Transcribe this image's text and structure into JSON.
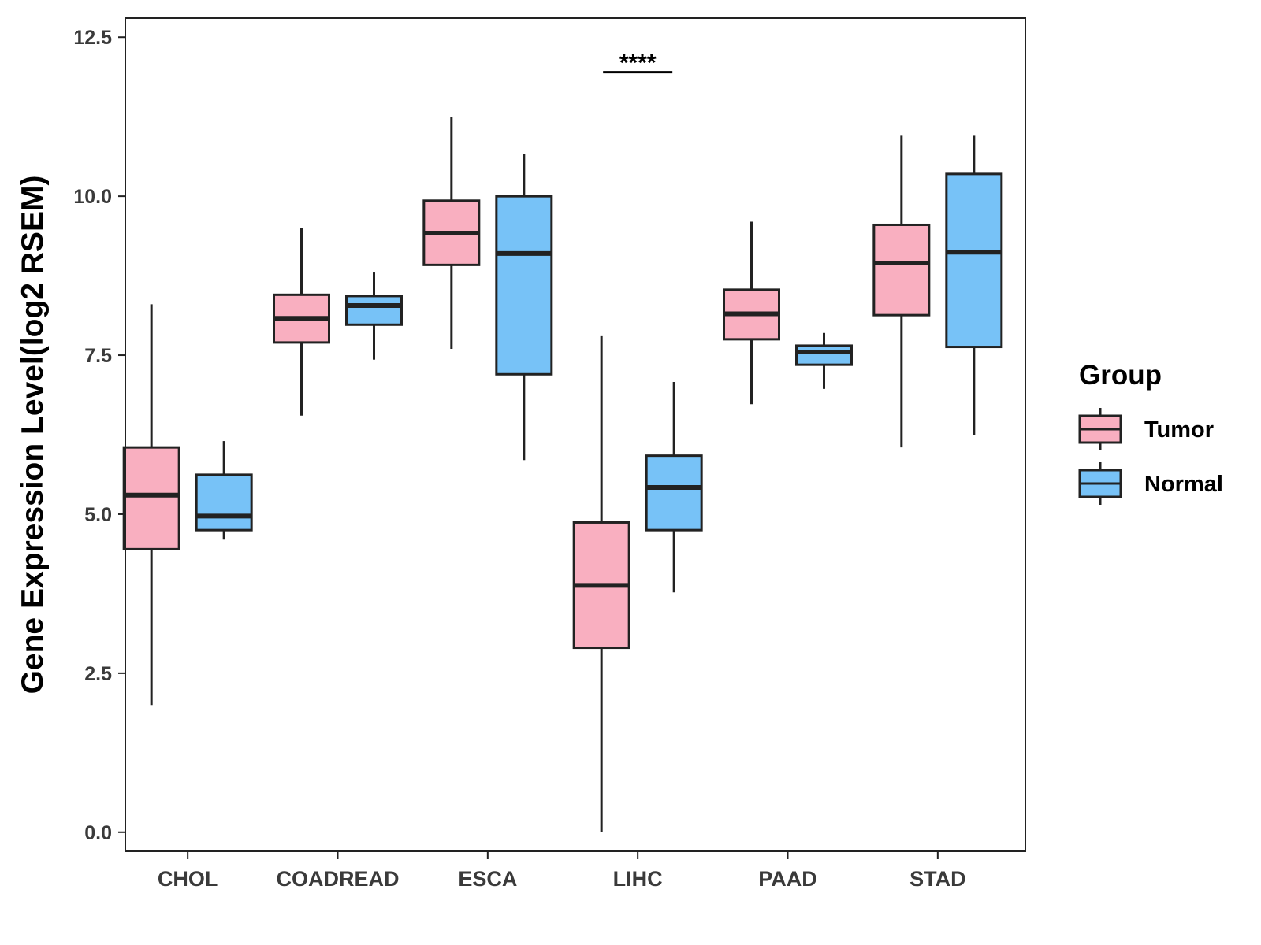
{
  "chart_data": {
    "type": "boxplot",
    "title": "",
    "xlabel": "",
    "ylabel": "Gene Expression Level(log2 RSEM)",
    "ylim": [
      -0.3,
      12.8
    ],
    "yticks": [
      0.0,
      2.5,
      5.0,
      7.5,
      10.0,
      12.5
    ],
    "ytick_labels": [
      "0.0",
      "2.5",
      "5.0",
      "7.5",
      "10.0",
      "12.5"
    ],
    "categories": [
      "CHOL",
      "COADREAD",
      "ESCA",
      "LIHC",
      "PAAD",
      "STAD"
    ],
    "legend": {
      "title": "Group",
      "position": "right"
    },
    "series": [
      {
        "name": "Tumor",
        "color": "#F9AFC0",
        "boxes": [
          {
            "min": 2.0,
            "q1": 4.45,
            "median": 5.3,
            "q3": 6.05,
            "max": 8.3
          },
          {
            "min": 6.55,
            "q1": 7.7,
            "median": 8.08,
            "q3": 8.45,
            "max": 9.5
          },
          {
            "min": 7.6,
            "q1": 8.92,
            "median": 9.42,
            "q3": 9.93,
            "max": 11.25
          },
          {
            "min": 0.0,
            "q1": 2.9,
            "median": 3.88,
            "q3": 4.87,
            "max": 7.8
          },
          {
            "min": 6.73,
            "q1": 7.75,
            "median": 8.15,
            "q3": 8.53,
            "max": 9.6
          },
          {
            "min": 6.05,
            "q1": 8.13,
            "median": 8.95,
            "q3": 9.55,
            "max": 10.95
          }
        ]
      },
      {
        "name": "Normal",
        "color": "#77C2F7",
        "boxes": [
          {
            "min": 4.6,
            "q1": 4.75,
            "median": 4.97,
            "q3": 5.62,
            "max": 6.15
          },
          {
            "min": 7.43,
            "q1": 7.98,
            "median": 8.28,
            "q3": 8.43,
            "max": 8.8
          },
          {
            "min": 5.85,
            "q1": 7.2,
            "median": 9.1,
            "q3": 10.0,
            "max": 10.67
          },
          {
            "min": 3.77,
            "q1": 4.75,
            "median": 5.42,
            "q3": 5.92,
            "max": 7.08
          },
          {
            "min": 6.97,
            "q1": 7.35,
            "median": 7.55,
            "q3": 7.65,
            "max": 7.85
          },
          {
            "min": 6.25,
            "q1": 7.63,
            "median": 9.12,
            "q3": 10.35,
            "max": 10.95
          }
        ]
      }
    ],
    "annotations": [
      {
        "category": "LIHC",
        "text": "****",
        "y": 11.95
      }
    ]
  }
}
